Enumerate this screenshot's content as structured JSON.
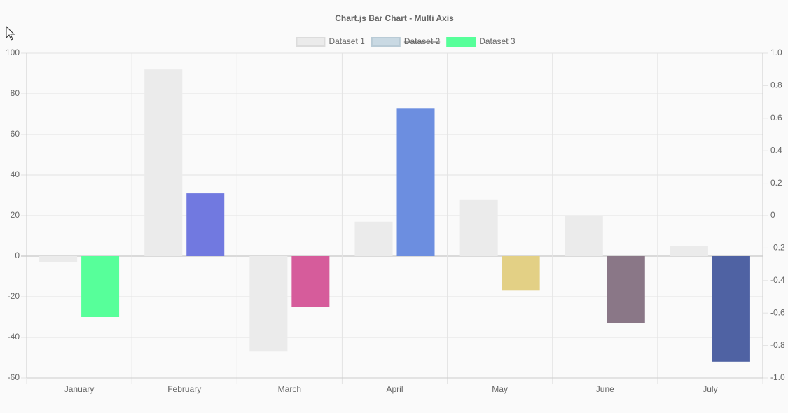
{
  "chart_data": {
    "type": "bar",
    "title": "Chart.js Bar Chart - Multi Axis",
    "categories": [
      "January",
      "February",
      "March",
      "April",
      "May",
      "June",
      "July"
    ],
    "series": [
      {
        "name": "Dataset 1",
        "color": "#ebebeb",
        "values": [
          -3,
          92,
          -47,
          17,
          28,
          20,
          5
        ]
      },
      {
        "name": "Dataset 2",
        "color": "#c9d9e3",
        "hidden": true,
        "axis": "y2",
        "values": [
          null,
          null,
          null,
          null,
          null,
          null,
          null
        ]
      },
      {
        "name": "Dataset 3",
        "color": "#57ff9a",
        "colors": [
          "#57ff9a",
          "#7179e0",
          "#d65c9b",
          "#6c8ee0",
          "#e3d085",
          "#8a7787",
          "#4f62a3"
        ],
        "values": [
          -30,
          31,
          -25,
          73,
          -17,
          -33,
          -52
        ]
      }
    ],
    "ylim": [
      -60,
      100
    ],
    "yticks": [
      -60,
      -40,
      -20,
      0,
      20,
      40,
      60,
      80,
      100
    ],
    "y2lim": [
      -1,
      1
    ],
    "y2ticks": [
      {
        "value": -1,
        "label": "-1.0"
      },
      -0.8,
      -0.6,
      -0.4,
      -0.2,
      0,
      0.2,
      0.4,
      0.6,
      0.8,
      {
        "value": 1,
        "label": "1.0"
      }
    ],
    "grid": true,
    "legend": "top"
  }
}
